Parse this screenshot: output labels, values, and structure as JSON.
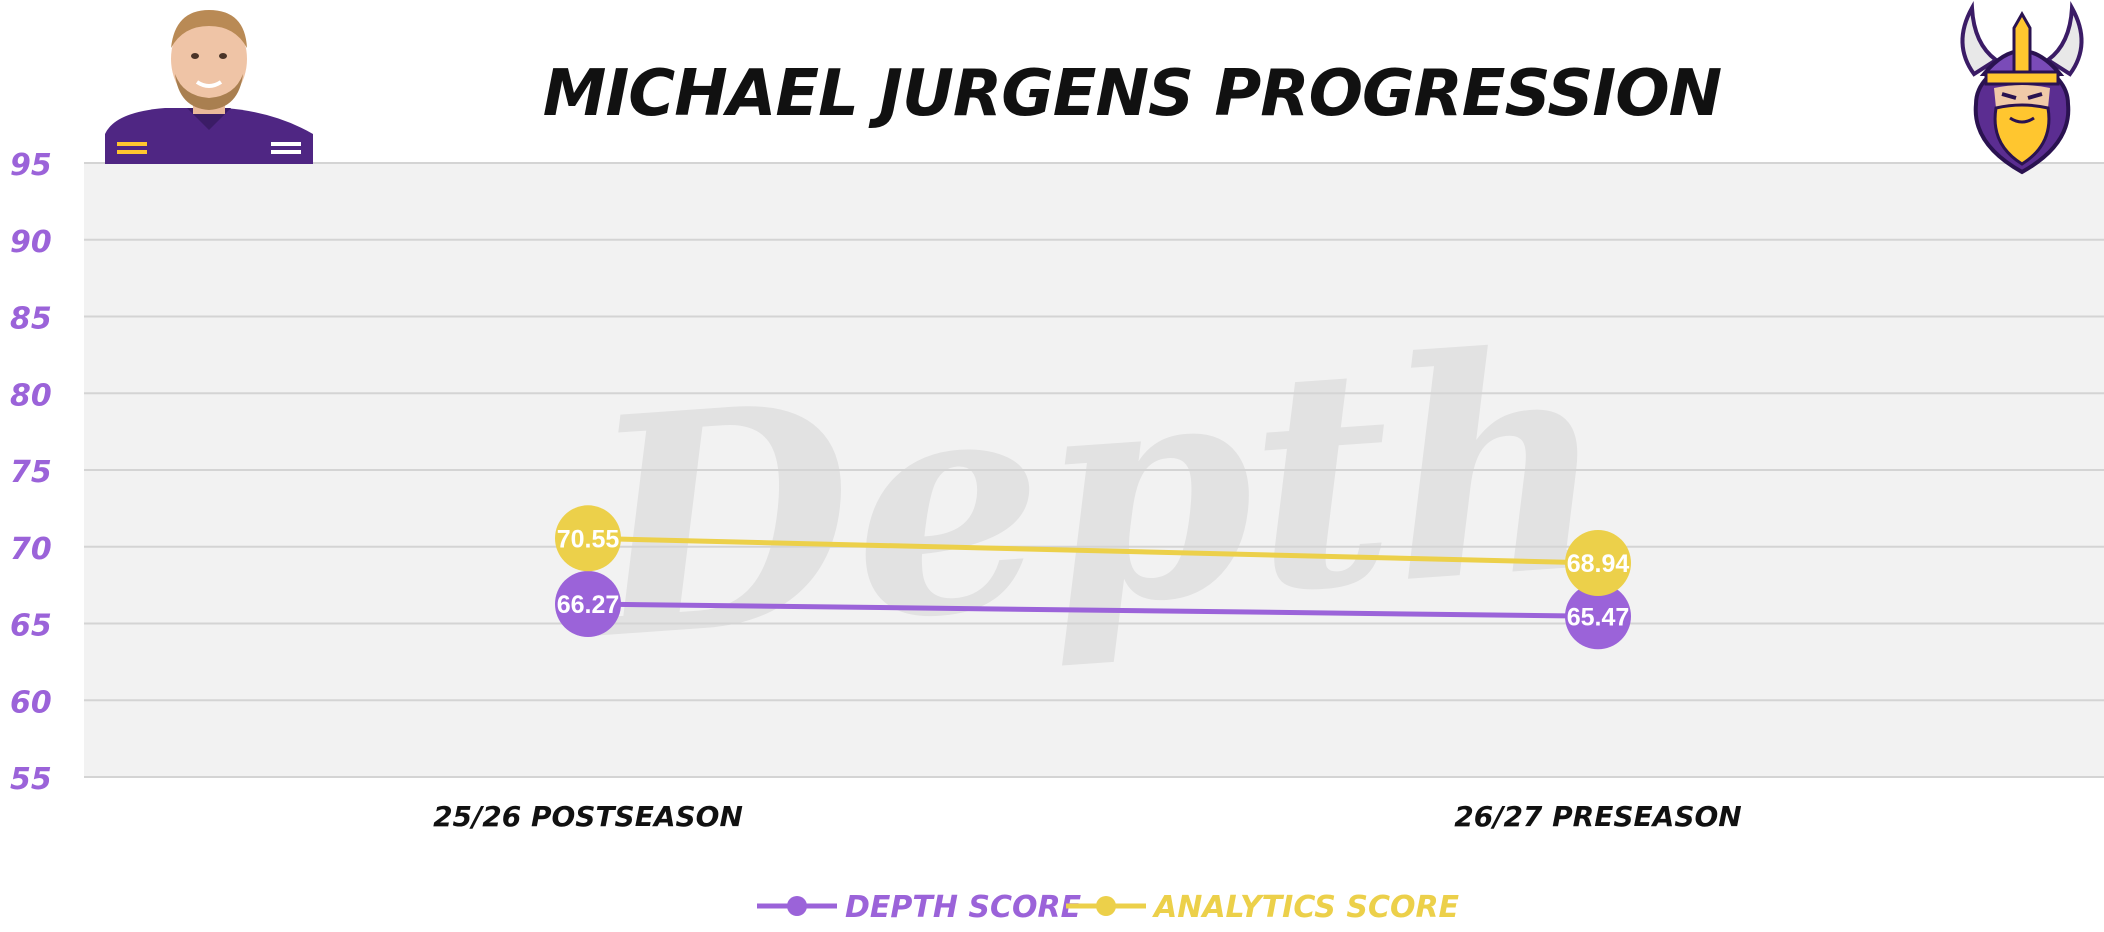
{
  "colors": {
    "depth": "#9b63d9",
    "analytics": "#ecd04a",
    "plot_bg": "#f2f2f2",
    "grid": "#d4d4d4"
  },
  "watermark": "Depth",
  "chart_data": {
    "type": "line",
    "title": "MICHAEL JURGENS PROGRESSION",
    "xlabel": "",
    "ylabel": "",
    "categories": [
      "25/26 POSTSEASON",
      "26/27 PRESEASON"
    ],
    "ylim": [
      55,
      95
    ],
    "yticks": [
      95,
      90,
      85,
      80,
      75,
      70,
      65,
      60,
      55
    ],
    "grid": true,
    "legend": "bottom-center",
    "series": [
      {
        "name": "DEPTH SCORE",
        "values": [
          66.27,
          65.47
        ],
        "labels": [
          "66.27",
          "65.47"
        ],
        "color": "#9b63d9"
      },
      {
        "name": "ANALYTICS SCORE",
        "values": [
          70.55,
          68.94
        ],
        "labels": [
          "70.55",
          "68.94"
        ],
        "color": "#ecd04a"
      }
    ]
  },
  "images": {
    "player_photo": "player-photo",
    "team_logo": "viking-logo"
  }
}
